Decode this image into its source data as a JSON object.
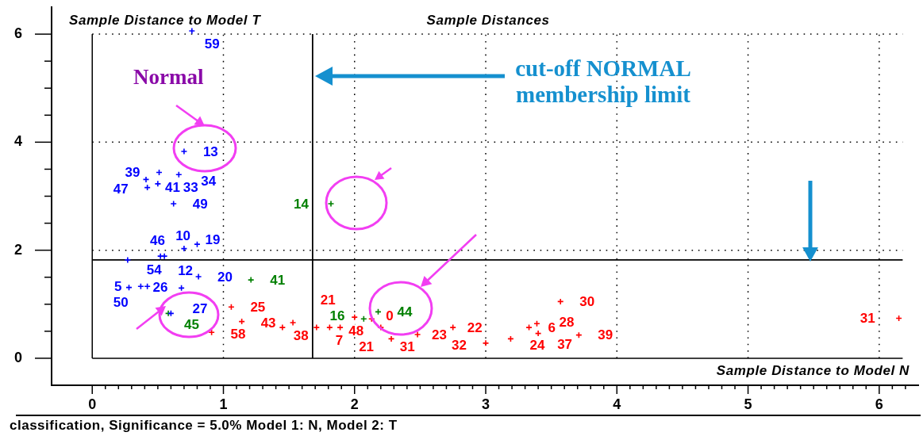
{
  "chart_data": {
    "type": "scatter",
    "title": "Sample Distances",
    "xlabel": "Sample Distance to Model N",
    "ylabel": "Sample Distance to Model T",
    "annotations": [
      "Normal",
      "cut-off NORMAL membership limit",
      "classification, Significance = 5.0% Model 1: N, Model 2: T",
      {
        "text": "59",
        "x": 0.76,
        "y": 6.06
      },
      {
        "text": "13",
        "x": 0.7,
        "y": 3.83
      },
      {
        "text": "39",
        "x": 0.51,
        "y": 3.44
      },
      {
        "text": "41",
        "x": 0.41,
        "y": 3.31
      },
      {
        "text": "33",
        "x": 0.5,
        "y": 3.23
      },
      {
        "text": "47",
        "x": 0.42,
        "y": 3.16
      },
      {
        "text": "34",
        "x": 0.66,
        "y": 3.4
      },
      {
        "text": "49",
        "x": 0.62,
        "y": 2.86
      },
      {
        "text": "19",
        "x": 0.8,
        "y": 2.11
      },
      {
        "text": "46",
        "x": 0.7,
        "y": 2.03
      },
      {
        "text": "12",
        "x": 0.52,
        "y": 1.89
      },
      {
        "text": "10",
        "x": 0.55,
        "y": 1.89
      },
      {
        "text": "54",
        "x": 0.27,
        "y": 1.82
      },
      {
        "text": "26",
        "x": 0.28,
        "y": 1.31
      },
      {
        "text": "5",
        "x": 0.37,
        "y": 1.33
      },
      {
        "text": "50",
        "x": 0.42,
        "y": 1.33
      },
      {
        "text": "20",
        "x": 0.81,
        "y": 1.51
      },
      {
        "text": "27",
        "x": 0.68,
        "y": 1.3
      },
      {
        "text": "45",
        "x": 0.58,
        "y": 0.83
      },
      {
        "text": "41",
        "x": 1.21,
        "y": 1.45
      },
      {
        "text": "14",
        "x": 1.82,
        "y": 2.86
      },
      {
        "text": "44",
        "x": 2.18,
        "y": 0.86
      },
      {
        "text": "16",
        "x": 2.07,
        "y": 0.73
      },
      {
        "text": "25",
        "x": 1.06,
        "y": 0.95
      },
      {
        "text": "58",
        "x": 0.91,
        "y": 0.48
      },
      {
        "text": "43",
        "x": 1.14,
        "y": 0.68
      },
      {
        "text": "38",
        "x": 1.45,
        "y": 0.57
      },
      {
        "text": "7",
        "x": 1.71,
        "y": 0.57
      },
      {
        "text": "48",
        "x": 1.81,
        "y": 0.57
      },
      {
        "text": "21",
        "x": 2.0,
        "y": 0.76
      },
      {
        "text": "0",
        "x": 2.13,
        "y": 0.73
      },
      {
        "text": "31",
        "x": 2.2,
        "y": 0.57
      },
      {
        "text": "21",
        "x": 2.28,
        "y": 0.36
      },
      {
        "text": "23",
        "x": 2.48,
        "y": 0.44
      },
      {
        "text": "22",
        "x": 2.75,
        "y": 0.57
      },
      {
        "text": "32",
        "x": 3.0,
        "y": 0.28
      },
      {
        "text": "24",
        "x": 3.19,
        "y": 0.36
      },
      {
        "text": "6",
        "x": 3.33,
        "y": 0.57
      },
      {
        "text": "28",
        "x": 3.39,
        "y": 0.64
      },
      {
        "text": "37",
        "x": 3.4,
        "y": 0.46
      },
      {
        "text": "39",
        "x": 3.71,
        "y": 0.43
      },
      {
        "text": "30",
        "x": 3.57,
        "y": 1.05
      },
      {
        "text": "31",
        "x": 6.15,
        "y": 0.74
      }
    ],
    "marker": "cross",
    "grid": true,
    "xlim": [
      -0.31,
      6.3
    ],
    "ylim": [
      -0.5,
      6.5
    ],
    "xticks": [
      0,
      {
        "value": 0.1,
        "label": null
      },
      {
        "value": 0.2,
        "label": null
      },
      {
        "value": 0.3,
        "label": null
      },
      {
        "value": 0.4,
        "label": null
      },
      {
        "value": 0.5,
        "label": null
      },
      {
        "value": 0.6,
        "label": null
      },
      {
        "value": 0.7,
        "label": null
      },
      {
        "value": 0.8,
        "label": null
      },
      {
        "value": 0.9,
        "label": null
      },
      1,
      {
        "value": 1.1,
        "label": null
      },
      {
        "value": 1.2,
        "label": null
      },
      {
        "value": 1.3,
        "label": null
      },
      {
        "value": 1.4,
        "label": null
      },
      {
        "value": 1.5,
        "label": null
      },
      {
        "value": 1.6,
        "label": null
      },
      {
        "value": 1.7,
        "label": null
      },
      {
        "value": 1.8,
        "label": null
      },
      {
        "value": 1.9,
        "label": null
      },
      2,
      {
        "value": 2.1,
        "label": null
      },
      {
        "value": 2.2,
        "label": null
      },
      {
        "value": 2.3,
        "label": null
      },
      {
        "value": 2.4,
        "label": null
      },
      {
        "value": 2.5,
        "label": null
      },
      {
        "value": 2.6,
        "label": null
      },
      {
        "value": 2.7,
        "label": null
      },
      {
        "value": 2.8,
        "label": null
      },
      {
        "value": 2.9,
        "label": null
      },
      3,
      {
        "value": 3.1,
        "label": null
      },
      {
        "value": 3.2,
        "label": null
      },
      {
        "value": 3.3,
        "label": null
      },
      {
        "value": 3.4,
        "label": null
      },
      {
        "value": 3.5,
        "label": null
      },
      {
        "value": 3.6,
        "label": null
      },
      {
        "value": 3.7,
        "label": null
      },
      {
        "value": 3.8,
        "label": null
      },
      {
        "value": 3.9,
        "label": null
      },
      4,
      {
        "value": 4.1,
        "label": null
      },
      {
        "value": 4.2,
        "label": null
      },
      {
        "value": 4.3,
        "label": null
      },
      {
        "value": 4.4,
        "label": null
      },
      {
        "value": 4.5,
        "label": null
      },
      {
        "value": 4.6,
        "label": null
      },
      {
        "value": 4.7,
        "label": null
      },
      {
        "value": 4.8,
        "label": null
      },
      {
        "value": 4.9,
        "label": null
      },
      5,
      {
        "value": 5.1,
        "label": null
      },
      {
        "value": 5.2,
        "label": null
      },
      {
        "value": 5.3,
        "label": null
      },
      {
        "value": 5.4,
        "label": null
      },
      {
        "value": 5.5,
        "label": null
      },
      {
        "value": 5.6,
        "label": null
      },
      {
        "value": 5.7,
        "label": null
      },
      {
        "value": 5.8,
        "label": null
      },
      {
        "value": 5.9,
        "label": null
      },
      6,
      {
        "value": 6.1,
        "label": null
      },
      {
        "value": 6.2,
        "label": null
      }
    ],
    "yticks": [
      0,
      {
        "value": 0.5,
        "label": null
      },
      {
        "value": 1,
        "label": null
      },
      {
        "value": 1.5,
        "label": null
      },
      2,
      {
        "value": 2.5,
        "label": null
      },
      {
        "value": 3,
        "label": null
      },
      {
        "value": 3.5,
        "label": null
      },
      4,
      {
        "value": 4.5,
        "label": null
      },
      {
        "value": 5,
        "label": null
      },
      {
        "value": 5.5,
        "label": null
      },
      6
    ],
    "ref_lines": [
      {
        "axis": "x",
        "value": 1.68,
        "color": "#000000"
      },
      {
        "axis": "y",
        "value": 1.82,
        "color": "#000000"
      }
    ],
    "series": [
      {
        "color": "#0000ff",
        "x": [
          0.76,
          0.7,
          0.51,
          0.41,
          0.5,
          0.42,
          0.66,
          0.62,
          0.8,
          0.7,
          0.52,
          0.55,
          0.27,
          0.28,
          0.37,
          0.42,
          0.81,
          0.68,
          0.6
        ],
        "values": [
          6.06,
          3.83,
          3.44,
          3.31,
          3.23,
          3.16,
          3.4,
          2.86,
          2.11,
          2.03,
          1.89,
          1.89,
          1.82,
          1.31,
          1.33,
          1.33,
          1.51,
          1.3,
          0.83
        ]
      },
      {
        "color": "#008000",
        "x": [
          0.58,
          1.21,
          1.82,
          2.18,
          2.07
        ],
        "values": [
          0.83,
          1.45,
          2.86,
          0.86,
          0.73
        ]
      },
      {
        "color": "#ff0000",
        "x": [
          1.06,
          0.91,
          1.14,
          1.45,
          1.53,
          1.71,
          1.81,
          1.89,
          2.0,
          2.13,
          2.2,
          2.28,
          2.48,
          2.75,
          3.0,
          3.19,
          3.33,
          3.39,
          3.4,
          3.71,
          3.57,
          6.15
        ],
        "values": [
          0.95,
          0.48,
          0.68,
          0.57,
          0.66,
          0.57,
          0.57,
          0.57,
          0.76,
          0.73,
          0.57,
          0.36,
          0.44,
          0.57,
          0.28,
          0.36,
          0.57,
          0.64,
          0.46,
          0.43,
          1.05,
          0.74
        ]
      }
    ]
  }
}
